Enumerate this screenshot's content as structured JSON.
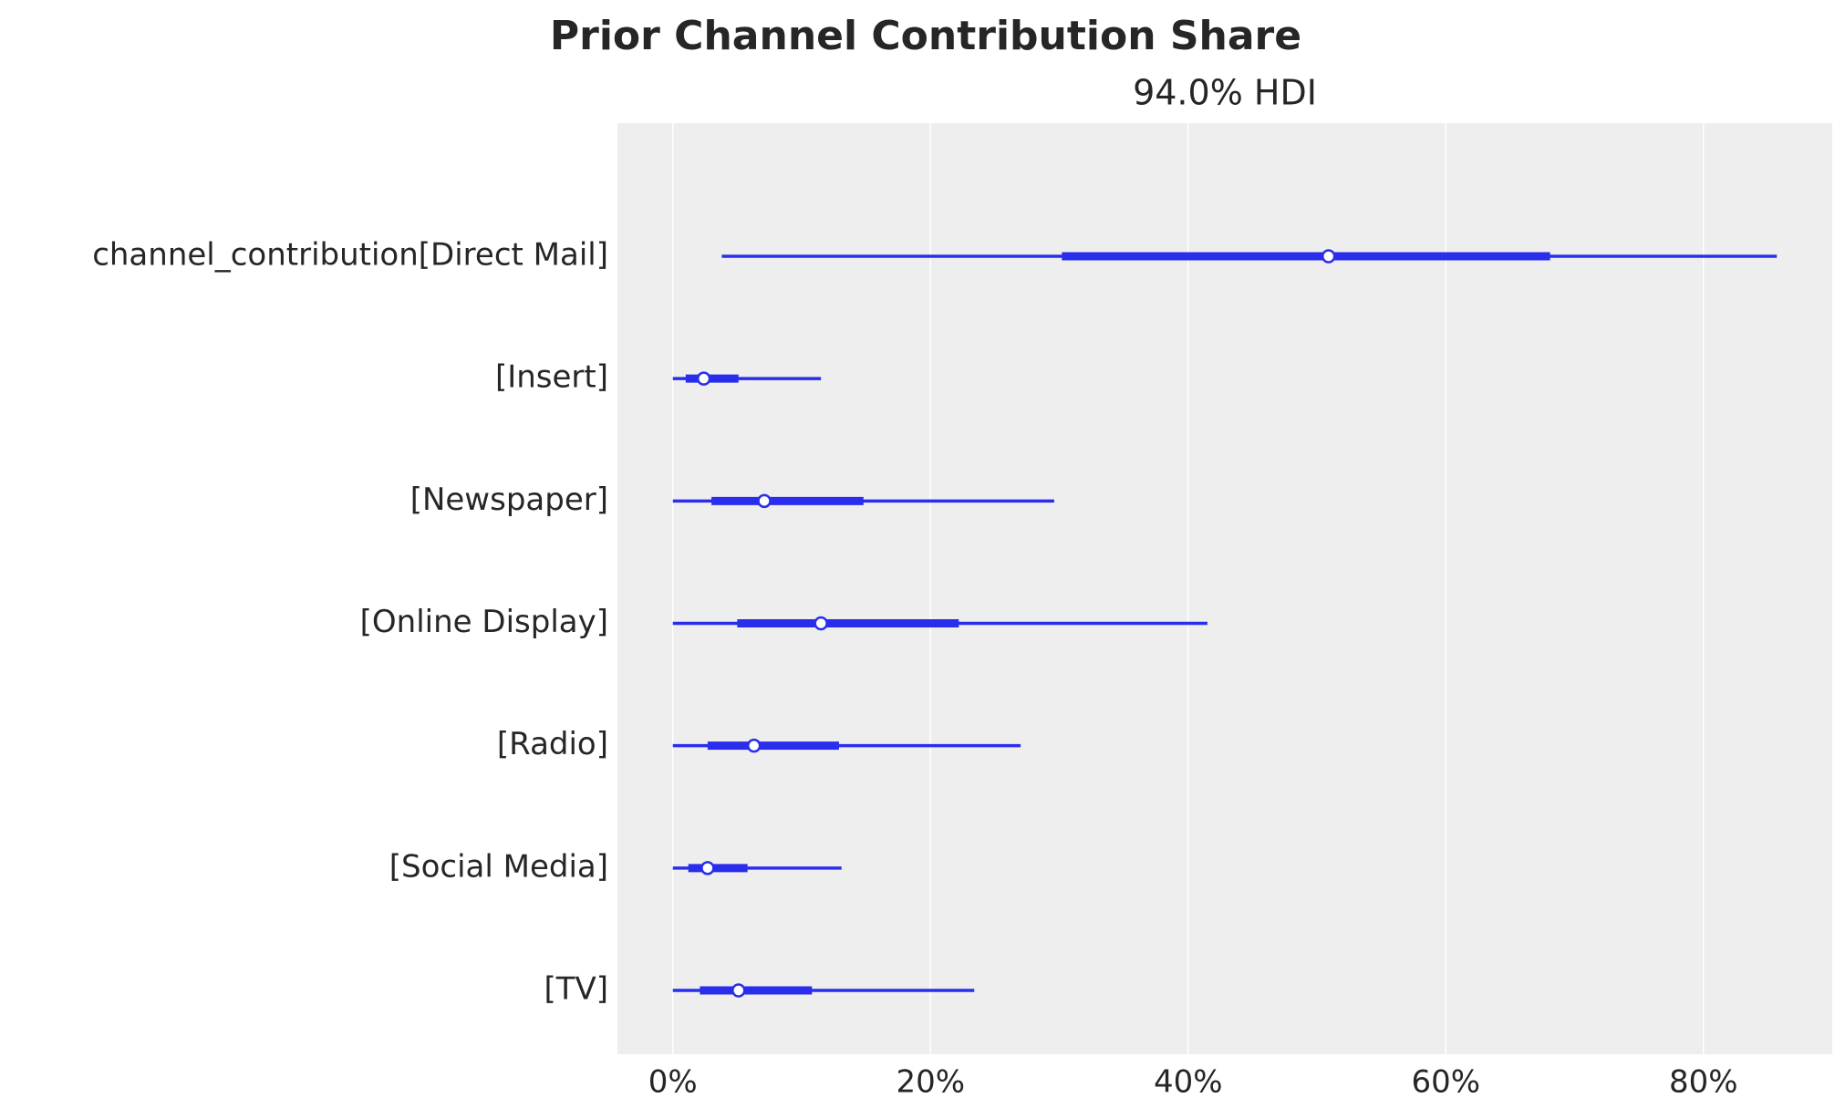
{
  "chart_data": {
    "type": "forest",
    "title": "Prior Channel Contribution Share",
    "subtitle": "94.0% HDI",
    "categories": [
      "channel_contribution[Direct Mail]",
      "[Insert]",
      "[Newspaper]",
      "[Online Display]",
      "[Radio]",
      "[Social Media]",
      "[TV]"
    ],
    "median": [
      50.9,
      2.4,
      7.1,
      11.5,
      6.3,
      2.7,
      5.1
    ],
    "q_low": [
      30.2,
      1.0,
      3.0,
      5.0,
      2.7,
      1.2,
      2.1
    ],
    "q_high": [
      68.1,
      5.1,
      14.8,
      22.2,
      12.9,
      5.8,
      10.8
    ],
    "hdi_low": [
      3.8,
      0,
      0,
      0,
      0,
      0,
      0
    ],
    "hdi_high": [
      85.7,
      11.5,
      29.6,
      41.5,
      27.0,
      13.1,
      23.4
    ],
    "color": "#2a2eec",
    "xlim": [
      -4.3,
      90
    ],
    "xticks": [
      {
        "value": 0,
        "label": "0%"
      },
      {
        "value": 20,
        "label": "20%"
      },
      {
        "value": 40,
        "label": "40%"
      },
      {
        "value": 60,
        "label": "60%"
      },
      {
        "value": 80,
        "label": "80%"
      }
    ],
    "grid": true
  }
}
